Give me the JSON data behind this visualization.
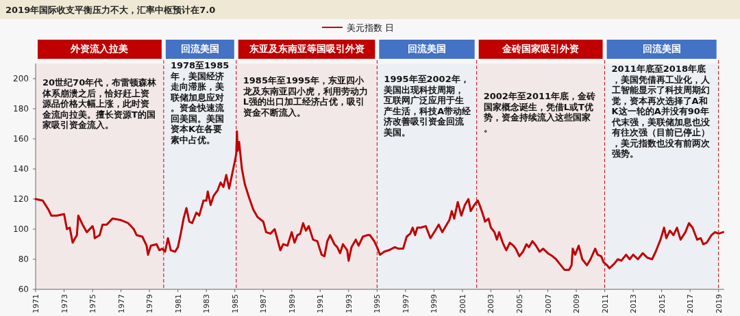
{
  "chart_data": {
    "type": "line",
    "title": "2019年国际收支平衡压力不大，汇率中枢预计在7.0",
    "legend": "top",
    "xlim": [
      1971,
      2019.4
    ],
    "ylim": [
      60,
      210
    ],
    "xticks": [
      1971,
      1973,
      1975,
      1977,
      1979,
      1981,
      1983,
      1985,
      1987,
      1989,
      1991,
      1993,
      1995,
      1997,
      1999,
      2001,
      2003,
      2005,
      2007,
      2009,
      2011,
      2013,
      2015,
      2017,
      2019
    ],
    "yticks": [
      60,
      80,
      100,
      120,
      140,
      160,
      180,
      200
    ],
    "series": [
      {
        "name": "美元指数 日",
        "color": "#c00000",
        "x": [
          1971.0,
          1971.5,
          1971.9,
          1972.1,
          1972.5,
          1973.0,
          1973.2,
          1973.4,
          1973.6,
          1973.9,
          1974.0,
          1974.3,
          1974.6,
          1975.0,
          1975.1,
          1975.15,
          1975.5,
          1975.7,
          1976.0,
          1976.4,
          1977.0,
          1977.5,
          1977.9,
          1978.1,
          1978.5,
          1978.8,
          1978.9,
          1979.1,
          1979.5,
          1979.7,
          1979.9,
          1980.1,
          1980.3,
          1980.5,
          1980.8,
          1981.0,
          1981.2,
          1981.4,
          1981.6,
          1981.8,
          1982.0,
          1982.3,
          1982.5,
          1982.8,
          1983.0,
          1983.1,
          1983.3,
          1983.5,
          1983.8,
          1984.0,
          1984.2,
          1984.4,
          1984.6,
          1984.8,
          1985.0,
          1985.1,
          1985.15,
          1985.2,
          1985.3,
          1985.5,
          1985.7,
          1986.0,
          1986.3,
          1986.6,
          1987.0,
          1987.2,
          1987.5,
          1987.8,
          1988.0,
          1988.2,
          1988.4,
          1988.7,
          1989.0,
          1989.2,
          1989.4,
          1989.6,
          1989.8,
          1990.0,
          1990.2,
          1990.5,
          1990.8,
          1991.1,
          1991.3,
          1991.5,
          1991.7,
          1992.0,
          1992.2,
          1992.4,
          1992.6,
          1992.9,
          1993.0,
          1993.2,
          1993.5,
          1993.7,
          1994.0,
          1994.3,
          1994.5,
          1994.8,
          1995.0,
          1995.2,
          1995.5,
          1995.83,
          1996.25,
          1996.5,
          1996.83,
          1997.08,
          1997.33,
          1997.5,
          1997.67,
          1997.83,
          1998.08,
          1998.42,
          1998.75,
          1999.08,
          1999.33,
          1999.58,
          1999.83,
          2000.08,
          2000.25,
          2000.42,
          2000.67,
          2000.92,
          2001.17,
          2001.42,
          2001.58,
          2001.83,
          2002.08,
          2002.25,
          2002.5,
          2002.58,
          2002.83,
          2003.0,
          2003.25,
          2003.42,
          2003.58,
          2003.83,
          2004.08,
          2004.33,
          2004.58,
          2004.75,
          2005.0,
          2005.25,
          2005.5,
          2005.67,
          2005.92,
          2006.17,
          2006.42,
          2006.67,
          2007.0,
          2007.33,
          2007.58,
          2007.83,
          2008.17,
          2008.5,
          2008.67,
          2008.75,
          2008.92,
          2009.17,
          2009.42,
          2009.75,
          2010.0,
          2010.33,
          2010.5,
          2010.75,
          2010.92,
          2011.17,
          2011.33,
          2011.67,
          2011.92,
          2012.17,
          2012.5,
          2012.75,
          2013.0,
          2013.33,
          2013.67,
          2014.0,
          2014.33,
          2014.58,
          2014.92,
          2015.17,
          2015.33,
          2015.58,
          2015.83,
          2016.08,
          2016.33,
          2016.67,
          2016.92,
          2017.17,
          2017.5,
          2017.75,
          2017.92,
          2018.17,
          2018.5,
          2018.75,
          2019.0,
          2019.33
        ],
        "values": [
          120,
          119,
          113,
          109,
          109,
          110,
          100,
          101,
          91,
          96,
          109,
          103,
          98,
          102,
          99,
          94,
          96,
          103,
          103,
          107,
          106,
          104,
          100,
          96,
          95,
          89,
          83,
          89,
          90,
          86,
          87,
          85,
          94,
          86,
          85,
          88,
          97,
          107,
          114,
          105,
          104,
          111,
          109,
          119,
          119,
          125,
          116,
          122,
          126,
          131,
          128,
          136,
          127,
          136,
          145,
          150,
          165,
          152,
          158,
          140,
          130,
          121,
          113,
          108,
          105,
          98,
          97,
          100,
          93,
          86,
          90,
          89,
          98,
          91,
          96,
          97,
          104,
          99,
          102,
          93,
          92,
          83,
          82,
          92,
          96,
          90,
          88,
          84,
          90,
          86,
          79,
          88,
          93,
          89,
          95,
          96,
          96,
          92,
          88,
          83,
          85,
          86,
          88,
          87,
          87,
          95,
          97,
          101,
          96,
          101,
          101,
          102,
          94,
          99,
          103,
          98,
          102,
          106,
          112,
          107,
          118,
          109,
          116,
          120,
          112,
          116,
          119,
          115,
          108,
          105,
          107,
          101,
          98,
          93,
          98,
          91,
          86,
          91,
          89,
          87,
          82,
          85,
          90,
          88,
          92,
          89,
          85,
          87,
          84,
          82,
          80,
          77,
          73,
          73,
          76,
          87,
          83,
          89,
          80,
          76,
          80,
          87,
          83,
          82,
          78,
          76,
          74,
          77,
          80,
          79,
          83,
          80,
          83,
          80,
          84,
          81,
          80,
          85,
          93,
          101,
          94,
          99,
          96,
          101,
          93,
          98,
          104,
          101,
          93,
          94,
          90,
          91,
          96,
          98,
          97,
          98
        ]
      }
    ],
    "marker": "none",
    "line_style": "solid",
    "grid": false,
    "ref_lines": [
      {
        "axis": "x",
        "value": 1980,
        "color": "#c00000",
        "line_style": "dashed"
      },
      {
        "axis": "x",
        "value": 1985.1,
        "color": "#c00000",
        "line_style": "dashed"
      },
      {
        "axis": "x",
        "value": 1995,
        "color": "#c00000",
        "line_style": "dashed"
      },
      {
        "axis": "x",
        "value": 2002,
        "color": "#c00000",
        "line_style": "dashed"
      },
      {
        "axis": "x",
        "value": 2011,
        "color": "#c00000",
        "line_style": "dashed"
      },
      {
        "axis": "x",
        "value": 2019,
        "color": "#c00000",
        "line_style": "dashed"
      }
    ],
    "bands": [
      {
        "axis": "x",
        "from": 1971,
        "to": 1980,
        "label": "外资流入拉美",
        "color": "#c00000"
      },
      {
        "axis": "x",
        "from": 1980,
        "to": 1985.1,
        "label": "回流美国",
        "color": "#4472c4"
      },
      {
        "axis": "x",
        "from": 1985.1,
        "to": 1995,
        "label": "东亚及东南亚等国吸引外资",
        "color": "#c00000"
      },
      {
        "axis": "x",
        "from": 1995,
        "to": 2002,
        "label": "回流美国",
        "color": "#4472c4"
      },
      {
        "axis": "x",
        "from": 2002,
        "to": 2011,
        "label": "金砖国家吸引外资",
        "color": "#c00000"
      },
      {
        "axis": "x",
        "from": 2011,
        "to": 2019,
        "label": "回流美国",
        "color": "#4472c4"
      }
    ],
    "annotations": [
      "20世纪70年代，布雷顿森林体系崩溃之后，恰好赶上资源品价格大幅上涨，此时资金流向拉美。擅长资源T的国家吸引资金流入。",
      "1978至1985年，美国经济走向滞胀，美联储加息应对。资金快速流回美国。美国资本K在各要素中占优。",
      "1985年至1995年，东亚四小龙及东南亚四小虎，利用劳动力L强的出口加工经济占优，吸引资金不断流入。",
      "1995年至2002年，美国出现科技周期，互联网广泛应用于生产生活，科技A带动经济改善吸引资金回流美国。",
      "2002年至2011年底，金砖国家概念诞生，凭借L或T优势，资金持续流入这些国家。",
      "2011年底至2018年底，美国凭借再工业化，人工智能显示了科技周期幻觉，资本再次选择了A和K这一轮的A并没有90年代末强，美联储加息也没有往次强（目前已停止），美元指数也没有前两次强势。"
    ]
  }
}
